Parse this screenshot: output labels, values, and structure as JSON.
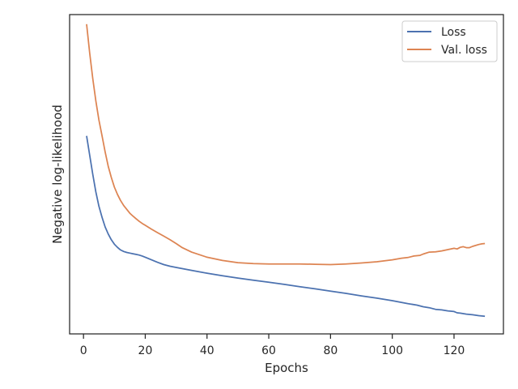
{
  "chart_data": {
    "type": "line",
    "title": "",
    "xlabel": "Epochs",
    "ylabel": "Negative log-likelihood",
    "xlim": [
      -4.5,
      136
    ],
    "ylim": [
      0,
      1
    ],
    "xticks": [
      0,
      20,
      40,
      60,
      80,
      100,
      120
    ],
    "ytick_labels_shown": false,
    "grid": false,
    "legend": "top-right",
    "series": [
      {
        "name": "Loss",
        "color": "#4c72b0",
        "x": [
          1,
          2,
          3,
          4,
          5,
          6,
          7,
          8,
          9,
          10,
          11,
          12,
          13,
          14,
          15,
          16,
          17,
          18,
          19,
          20,
          22,
          24,
          26,
          28,
          30,
          35,
          40,
          45,
          50,
          55,
          60,
          65,
          70,
          75,
          80,
          85,
          90,
          95,
          100,
          105,
          108,
          110,
          112,
          114,
          116,
          118,
          120,
          121,
          122,
          124,
          126,
          128,
          130
        ],
        "y": [
          0.62,
          0.56,
          0.5,
          0.445,
          0.4,
          0.365,
          0.335,
          0.313,
          0.295,
          0.281,
          0.271,
          0.263,
          0.258,
          0.255,
          0.253,
          0.251,
          0.249,
          0.247,
          0.244,
          0.24,
          0.232,
          0.224,
          0.217,
          0.212,
          0.208,
          0.199,
          0.19,
          0.182,
          0.175,
          0.168,
          0.162,
          0.155,
          0.148,
          0.141,
          0.134,
          0.127,
          0.119,
          0.112,
          0.104,
          0.095,
          0.09,
          0.085,
          0.082,
          0.077,
          0.075,
          0.072,
          0.07,
          0.066,
          0.065,
          0.062,
          0.06,
          0.057,
          0.055
        ]
      },
      {
        "name": "Val. loss",
        "color": "#dd8452",
        "x": [
          1,
          2,
          3,
          4,
          5,
          6,
          7,
          8,
          9,
          10,
          11,
          12,
          13,
          14,
          15,
          16,
          17,
          18,
          19,
          20,
          22,
          24,
          26,
          28,
          30,
          32,
          35,
          40,
          45,
          50,
          55,
          60,
          65,
          70,
          75,
          80,
          85,
          90,
          95,
          100,
          103,
          105,
          107,
          109,
          110,
          112,
          114,
          116,
          118,
          120,
          121,
          122,
          123,
          124,
          125,
          126,
          128,
          129,
          130
        ],
        "y": [
          0.97,
          0.88,
          0.8,
          0.73,
          0.67,
          0.62,
          0.57,
          0.525,
          0.49,
          0.46,
          0.437,
          0.418,
          0.402,
          0.39,
          0.378,
          0.369,
          0.361,
          0.353,
          0.346,
          0.34,
          0.328,
          0.317,
          0.306,
          0.295,
          0.283,
          0.27,
          0.256,
          0.24,
          0.23,
          0.223,
          0.22,
          0.219,
          0.219,
          0.219,
          0.218,
          0.217,
          0.219,
          0.222,
          0.226,
          0.232,
          0.237,
          0.239,
          0.244,
          0.246,
          0.25,
          0.256,
          0.257,
          0.26,
          0.264,
          0.268,
          0.266,
          0.271,
          0.273,
          0.27,
          0.27,
          0.274,
          0.28,
          0.282,
          0.283
        ]
      }
    ]
  }
}
